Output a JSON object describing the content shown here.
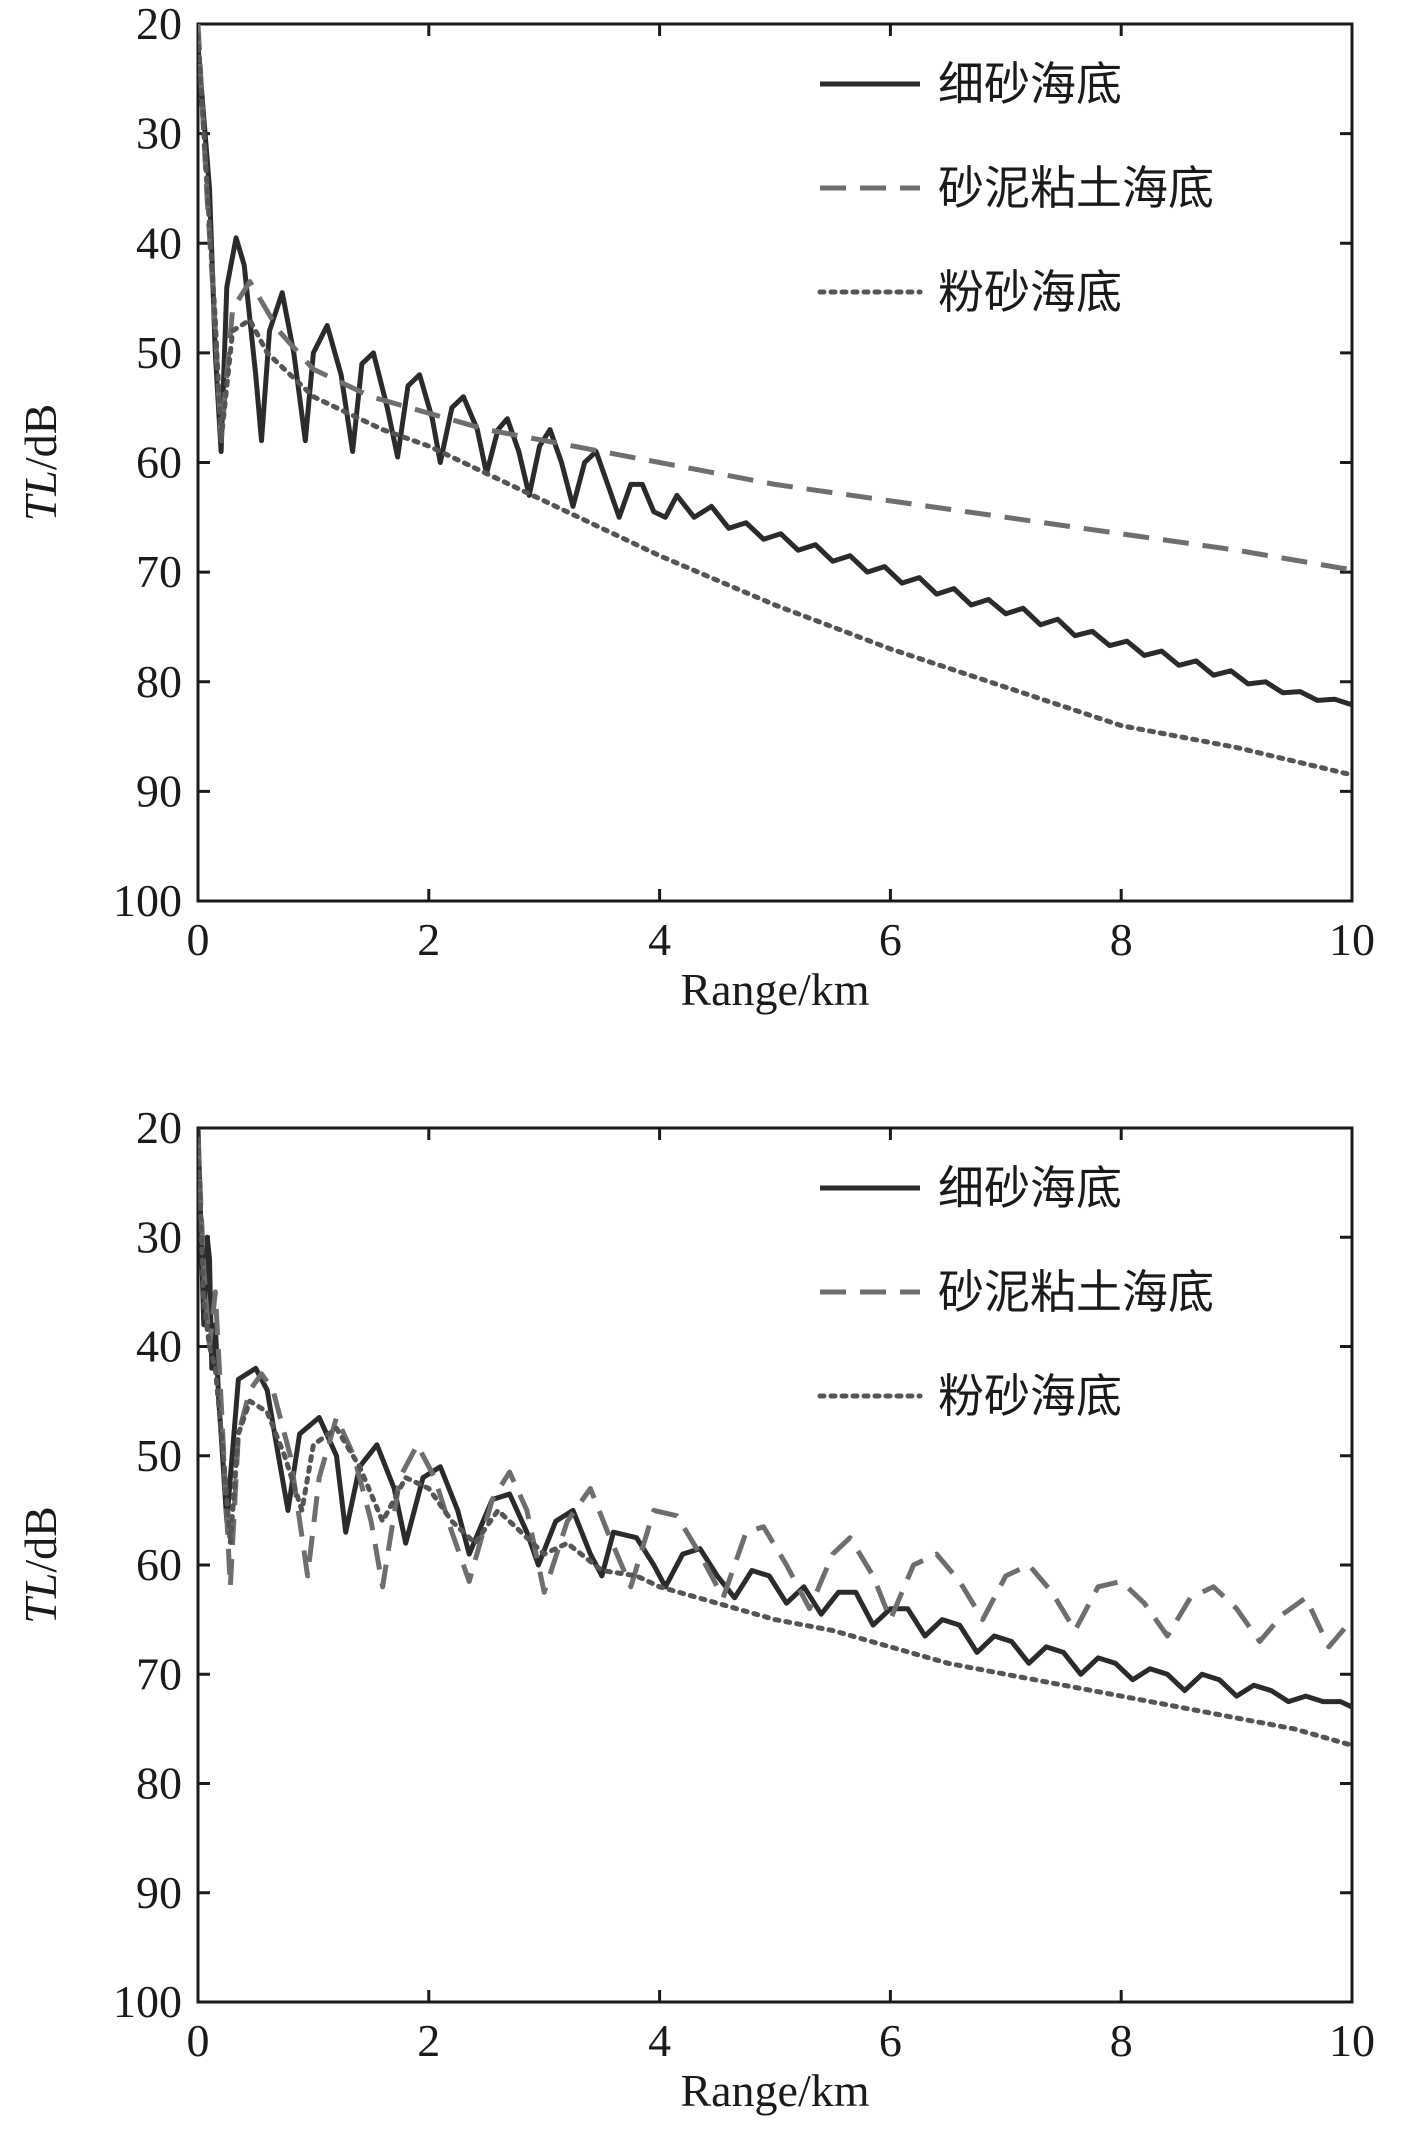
{
  "chart_data": [
    {
      "type": "line",
      "title": "",
      "xlabel": "Range/km",
      "ylabel_italic": "TL",
      "ylabel_unit": "/dB",
      "xlim": [
        0,
        10
      ],
      "ylim": [
        20,
        100
      ],
      "y_inverted": true,
      "xticks": [
        "0",
        "2",
        "4",
        "6",
        "8",
        "10"
      ],
      "yticks": [
        "20",
        "30",
        "40",
        "50",
        "60",
        "70",
        "80",
        "90",
        "100"
      ],
      "legend_position": "top-right",
      "series": [
        {
          "name": "细砂海底",
          "color": "#2b2b2b",
          "style": "solid",
          "x": [
            0,
            0.1,
            0.15,
            0.2,
            0.25,
            0.33,
            0.4,
            0.5,
            0.55,
            0.62,
            0.73,
            0.83,
            0.93,
            1.0,
            1.12,
            1.24,
            1.34,
            1.42,
            1.52,
            1.64,
            1.73,
            1.82,
            1.92,
            2.03,
            2.1,
            2.2,
            2.3,
            2.42,
            2.5,
            2.6,
            2.68,
            2.78,
            2.87,
            2.96,
            3.05,
            3.15,
            3.25,
            3.35,
            3.45,
            3.55,
            3.65,
            3.75,
            3.85,
            3.95,
            4.05,
            4.15,
            4.3,
            4.45,
            4.6,
            4.75,
            4.9,
            5.05,
            5.2,
            5.35,
            5.5,
            5.65,
            5.8,
            5.95,
            6.1,
            6.25,
            6.4,
            6.55,
            6.7,
            6.85,
            7.0,
            7.15,
            7.3,
            7.45,
            7.6,
            7.75,
            7.9,
            8.05,
            8.2,
            8.35,
            8.5,
            8.65,
            8.8,
            8.95,
            9.1,
            9.25,
            9.4,
            9.55,
            9.7,
            9.85,
            10.0
          ],
          "y": [
            22,
            35,
            50,
            59,
            44,
            39.5,
            42,
            52,
            58,
            48,
            44.5,
            50,
            58,
            50,
            47.5,
            52,
            59,
            51,
            50,
            55,
            59.5,
            53,
            52,
            56,
            60,
            55,
            54,
            57,
            61,
            57,
            56,
            59,
            63,
            58.5,
            57,
            60,
            64,
            60,
            59,
            62,
            65,
            62,
            62,
            64.5,
            65,
            63,
            65,
            64,
            66,
            65.5,
            67,
            66.5,
            68,
            67.5,
            69,
            68.5,
            70,
            69.5,
            71,
            70.5,
            72,
            71.5,
            73,
            72.5,
            73.8,
            73.3,
            74.8,
            74.3,
            75.8,
            75.4,
            76.7,
            76.3,
            77.6,
            77.2,
            78.5,
            78.1,
            79.4,
            79,
            80.2,
            80,
            81,
            80.9,
            81.7,
            81.6,
            82.1
          ]
        },
        {
          "name": "砂泥粘土海底",
          "color": "#6e6e6e",
          "style": "dashed",
          "x": [
            0,
            0.08,
            0.14,
            0.2,
            0.3,
            0.45,
            0.7,
            1.0,
            1.5,
            2.0,
            2.5,
            3.0,
            4.0,
            5.0,
            6.0,
            7.0,
            8.0,
            9.0,
            10.0
          ],
          "y": [
            20,
            36,
            46,
            58,
            46,
            43.5,
            48,
            51.5,
            54,
            55.5,
            57,
            58,
            60,
            62,
            63.5,
            65,
            66.5,
            68,
            69.8
          ]
        },
        {
          "name": "粉砂海底",
          "color": "#555555",
          "style": "dotted",
          "x": [
            0,
            0.08,
            0.15,
            0.2,
            0.3,
            0.45,
            0.6,
            0.8,
            1.0,
            1.3,
            1.6,
            2.0,
            2.5,
            3.0,
            3.5,
            4.0,
            5.0,
            6.0,
            7.0,
            8.0,
            9.0,
            10.0
          ],
          "y": [
            21,
            35,
            47,
            58,
            48,
            47,
            50,
            52,
            54,
            55.5,
            57,
            58.5,
            61,
            63.5,
            66,
            68.5,
            73,
            77,
            80.5,
            84,
            86,
            88.5
          ]
        }
      ]
    },
    {
      "type": "line",
      "title": "",
      "xlabel": "Range/km",
      "ylabel_italic": "TL",
      "ylabel_unit": "/dB",
      "xlim": [
        0,
        10
      ],
      "ylim": [
        20,
        100
      ],
      "y_inverted": true,
      "xticks": [
        "0",
        "2",
        "4",
        "6",
        "8",
        "10"
      ],
      "yticks": [
        "20",
        "30",
        "40",
        "50",
        "60",
        "70",
        "80",
        "90",
        "100"
      ],
      "legend_position": "top-right",
      "series": [
        {
          "name": "细砂海底",
          "color": "#2b2b2b",
          "style": "solid",
          "x": [
            0,
            0.05,
            0.08,
            0.1,
            0.12,
            0.15,
            0.18,
            0.2,
            0.25,
            0.35,
            0.5,
            0.6,
            0.68,
            0.78,
            0.88,
            1.05,
            1.2,
            1.28,
            1.4,
            1.55,
            1.7,
            1.8,
            1.95,
            2.1,
            2.25,
            2.35,
            2.55,
            2.7,
            2.85,
            2.95,
            3.1,
            3.25,
            3.4,
            3.5,
            3.6,
            3.8,
            3.95,
            4.05,
            4.2,
            4.35,
            4.5,
            4.65,
            4.8,
            4.95,
            5.1,
            5.25,
            5.4,
            5.55,
            5.7,
            5.85,
            6.0,
            6.15,
            6.3,
            6.45,
            6.6,
            6.75,
            6.9,
            7.05,
            7.2,
            7.35,
            7.5,
            7.65,
            7.8,
            7.95,
            8.1,
            8.25,
            8.4,
            8.55,
            8.7,
            8.85,
            9.0,
            9.15,
            9.3,
            9.45,
            9.6,
            9.75,
            9.9,
            10.0
          ],
          "y": [
            20,
            38,
            30,
            32,
            42,
            38,
            45,
            48,
            56,
            43,
            42,
            44,
            49,
            55,
            48,
            46.5,
            50,
            57,
            51,
            49,
            53,
            58,
            52,
            51,
            55,
            59,
            54,
            53.5,
            57,
            60,
            56,
            55,
            59,
            61,
            57,
            57.5,
            60,
            62,
            59,
            58.5,
            61,
            63,
            60.5,
            61,
            63.5,
            62,
            64.5,
            62.5,
            62.5,
            65.5,
            64,
            64,
            66.5,
            65,
            65.5,
            68,
            66.5,
            67,
            69,
            67.5,
            68,
            70,
            68.5,
            69,
            70.5,
            69.5,
            70,
            71.5,
            70,
            70.5,
            72,
            71,
            71.5,
            72.5,
            72,
            72.5,
            72.5,
            73
          ]
        },
        {
          "name": "砂泥粘土海底",
          "color": "#6e6e6e",
          "style": "dashed",
          "x": [
            0,
            0.05,
            0.1,
            0.15,
            0.2,
            0.28,
            0.35,
            0.45,
            0.55,
            0.65,
            0.8,
            0.95,
            1.05,
            1.2,
            1.35,
            1.5,
            1.6,
            1.75,
            1.9,
            2.05,
            2.2,
            2.35,
            2.55,
            2.7,
            2.85,
            3.0,
            3.2,
            3.4,
            3.55,
            3.75,
            3.95,
            4.15,
            4.35,
            4.55,
            4.75,
            4.9,
            5.1,
            5.3,
            5.5,
            5.65,
            5.85,
            6.0,
            6.2,
            6.4,
            6.6,
            6.8,
            7.0,
            7.2,
            7.4,
            7.6,
            7.8,
            8.0,
            8.2,
            8.4,
            8.6,
            8.8,
            9.0,
            9.2,
            9.4,
            9.6,
            9.8,
            10.0
          ],
          "y": [
            21,
            33,
            40,
            35,
            45,
            62,
            48,
            44,
            42.5,
            44,
            50,
            61,
            52,
            46.5,
            50,
            56,
            62,
            52,
            49,
            52,
            57,
            61.5,
            54,
            51.5,
            55,
            62.5,
            56,
            53,
            57,
            62,
            55,
            55.5,
            59,
            63,
            57,
            56.5,
            60,
            64,
            59,
            57.5,
            61,
            65,
            60,
            59,
            61.5,
            65,
            61,
            60,
            62.5,
            66,
            62,
            61.5,
            63.5,
            66.5,
            63,
            62,
            64,
            67,
            64.5,
            63,
            67.5,
            65
          ]
        },
        {
          "name": "粉砂海底",
          "color": "#555555",
          "style": "dotted",
          "x": [
            0,
            0.05,
            0.1,
            0.15,
            0.22,
            0.28,
            0.35,
            0.45,
            0.6,
            0.75,
            0.9,
            1.0,
            1.2,
            1.4,
            1.6,
            1.8,
            2.0,
            2.2,
            2.4,
            2.6,
            2.8,
            3.0,
            3.2,
            3.5,
            3.8,
            4.0,
            4.5,
            5.0,
            5.5,
            6.0,
            6.5,
            7.0,
            7.5,
            8.0,
            8.5,
            9.0,
            9.5,
            10.0
          ],
          "y": [
            21,
            36,
            40,
            42,
            50,
            58,
            48,
            45,
            46,
            50,
            55,
            49,
            47.5,
            51,
            56,
            52,
            53,
            56,
            58,
            55,
            57,
            59,
            58,
            60.5,
            61,
            62,
            63.5,
            65,
            66,
            67.5,
            69,
            70,
            71,
            72,
            73,
            74,
            75,
            76.5
          ]
        }
      ]
    }
  ]
}
